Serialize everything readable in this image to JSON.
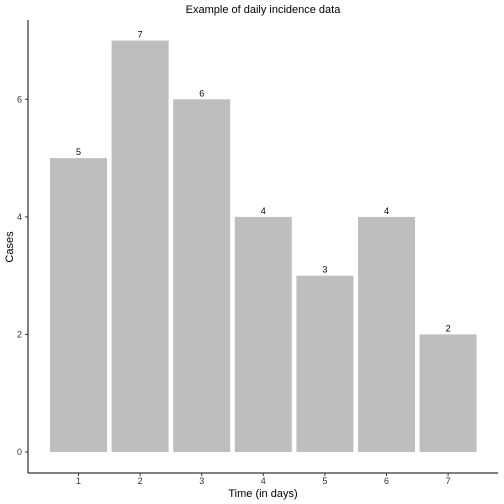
{
  "chart_data": {
    "type": "bar",
    "title": "Example of daily incidence data",
    "xlabel": "Time (in days)",
    "ylabel": "Cases",
    "categories": [
      "1",
      "2",
      "3",
      "4",
      "5",
      "6",
      "7"
    ],
    "values": [
      5,
      7,
      6,
      4,
      3,
      4,
      2
    ],
    "data_labels": [
      "5",
      "7",
      "6",
      "4",
      "3",
      "4",
      "2"
    ],
    "ylim": [
      0,
      7.35
    ],
    "yticks": [
      0,
      2,
      4,
      6
    ],
    "grid": false,
    "bar_color": "#bebebe",
    "axis_color": "#000000"
  }
}
